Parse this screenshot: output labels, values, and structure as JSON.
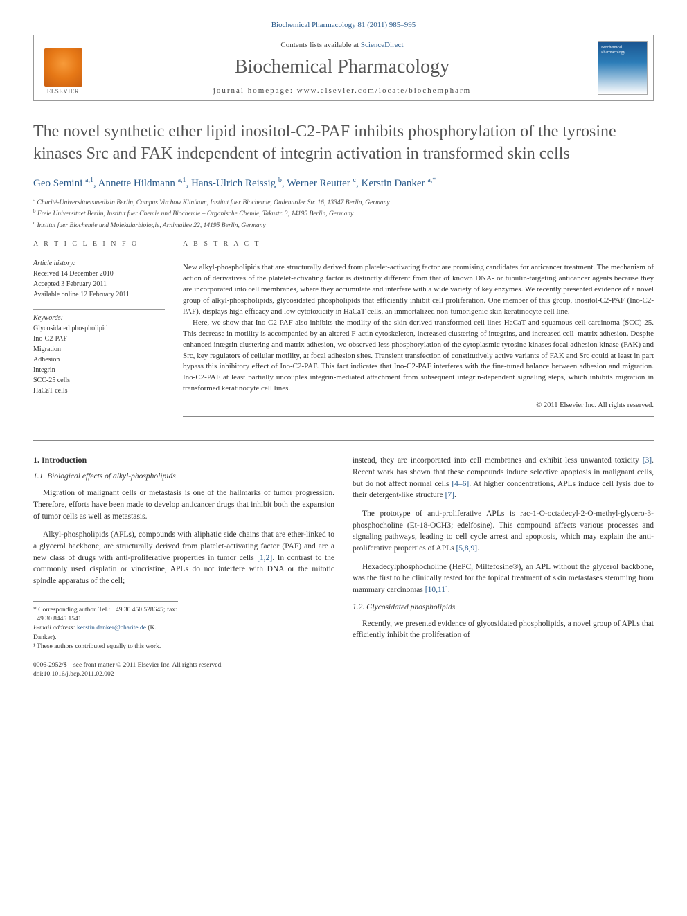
{
  "header": {
    "citation": "Biochemical Pharmacology 81 (2011) 985–995"
  },
  "topbox": {
    "elsevier_label": "ELSEVIER",
    "contents_prefix": "Contents lists available at ",
    "contents_link": "ScienceDirect",
    "journal_name": "Biochemical Pharmacology",
    "homepage_prefix": "journal homepage: ",
    "homepage_url": "www.elsevier.com/locate/biochempharm"
  },
  "title": "The novel synthetic ether lipid inositol-C2-PAF inhibits phosphorylation of the tyrosine kinases Src and FAK independent of integrin activation in transformed skin cells",
  "authors_html": "Geo Semini <sup>a,1</sup>, Annette Hildmann <sup>a,1</sup>, Hans-Ulrich Reissig <sup>b</sup>, Werner Reutter <sup>c</sup>, Kerstin Danker <sup>a,*</sup>",
  "affiliations": [
    {
      "sup": "a",
      "text": "Charité-Universitaetsmedizin Berlin, Campus Virchow Klinikum, Institut fuer Biochemie, Oudenarder Str. 16, 13347 Berlin, Germany"
    },
    {
      "sup": "b",
      "text": "Freie Universitaet Berlin, Institut fuer Chemie und Biochemie – Organische Chemie, Takustr. 3, 14195 Berlin, Germany"
    },
    {
      "sup": "c",
      "text": "Institut fuer Biochemie und Molekularbiologie, Arnimallee 22, 14195 Berlin, Germany"
    }
  ],
  "info": {
    "heading_left": "A R T I C L E   I N F O",
    "heading_right": "A B S T R A C T",
    "history_label": "Article history:",
    "history_lines": [
      "Received 14 December 2010",
      "Accepted 3 February 2011",
      "Available online 12 February 2011"
    ],
    "keywords_label": "Keywords:",
    "keywords": [
      "Glycosidated phospholipid",
      "Ino-C2-PAF",
      "Migration",
      "Adhesion",
      "Integrin",
      "SCC-25 cells",
      "HaCaT cells"
    ]
  },
  "abstract": {
    "p1": "New alkyl-phospholipids that are structurally derived from platelet-activating factor are promising candidates for anticancer treatment. The mechanism of action of derivatives of the platelet-activating factor is distinctly different from that of known DNA- or tubulin-targeting anticancer agents because they are incorporated into cell membranes, where they accumulate and interfere with a wide variety of key enzymes. We recently presented evidence of a novel group of alkyl-phospholipids, glycosidated phospholipids that efficiently inhibit cell proliferation. One member of this group, inositol-C2-PAF (Ino-C2-PAF), displays high efficacy and low cytotoxicity in HaCaT-cells, an immortalized non-tumorigenic skin keratinocyte cell line.",
    "p2": "Here, we show that Ino-C2-PAF also inhibits the motility of the skin-derived transformed cell lines HaCaT and squamous cell carcinoma (SCC)-25. This decrease in motility is accompanied by an altered F-actin cytoskeleton, increased clustering of integrins, and increased cell–matrix adhesion. Despite enhanced integrin clustering and matrix adhesion, we observed less phosphorylation of the cytoplasmic tyrosine kinases focal adhesion kinase (FAK) and Src, key regulators of cellular motility, at focal adhesion sites. Transient transfection of constitutively active variants of FAK and Src could at least in part bypass this inhibitory effect of Ino-C2-PAF. This fact indicates that Ino-C2-PAF interferes with the fine-tuned balance between adhesion and migration. Ino-C2-PAF at least partially uncouples integrin-mediated attachment from subsequent integrin-dependent signaling steps, which inhibits migration in transformed keratinocyte cell lines.",
    "copyright": "© 2011 Elsevier Inc. All rights reserved."
  },
  "body": {
    "section1": "1. Introduction",
    "section11": "1.1. Biological effects of alkyl-phospholipids",
    "p_left_1": "Migration of malignant cells or metastasis is one of the hallmarks of tumor progression. Therefore, efforts have been made to develop anticancer drugs that inhibit both the expansion of tumor cells as well as metastasis.",
    "p_left_2a": "Alkyl-phospholipids (APLs), compounds with aliphatic side chains that are ether-linked to a glycerol backbone, are structurally derived from platelet-activating factor (PAF) and are a new class of drugs with anti-proliferative properties in tumor cells ",
    "cite12": "[1,2]",
    "p_left_2b": ". In contrast to the commonly used cisplatin or vincristine, APLs do not interfere with DNA or the mitotic spindle apparatus of the cell;",
    "p_right_1a": "instead, they are incorporated into cell membranes and exhibit less unwanted toxicity ",
    "cite3": "[3]",
    "p_right_1b": ". Recent work has shown that these compounds induce selective apoptosis in malignant cells, but do not affect normal cells ",
    "cite46": "[4–6]",
    "p_right_1c": ". At higher concentrations, APLs induce cell lysis due to their detergent-like structure ",
    "cite7": "[7]",
    "p_right_1d": ".",
    "p_right_2a": "The prototype of anti-proliferative APLs is rac-1-O-octadecyl-2-O-methyl-glycero-3-phosphocholine (Et-18-OCH3; edelfosine). This compound affects various processes and signaling pathways, leading to cell cycle arrest and apoptosis, which may explain the anti-proliferative properties of APLs ",
    "cite589": "[5,8,9]",
    "p_right_2b": ".",
    "p_right_3a": "Hexadecylphosphocholine (HePC, Miltefosine®), an APL without the glycerol backbone, was the first to be clinically tested for the topical treatment of skin metastases stemming from mammary carcinomas ",
    "cite1011": "[10,11]",
    "p_right_3b": ".",
    "section12": "1.2. Glycosidated phospholipids",
    "p_right_4": "Recently, we presented evidence of glycosidated phospholipids, a novel group of APLs that efficiently inhibit the proliferation of"
  },
  "footnotes": {
    "corr": "* Corresponding author. Tel.: +49 30 450 528645; fax: +49 30 8445 1541.",
    "email_label": "E-mail address:",
    "email": "kerstin.danker@charite.de",
    "email_suffix": "(K. Danker).",
    "contrib": "¹ These authors contributed equally to this work."
  },
  "bottom": {
    "line1": "0006-2952/$ – see front matter © 2011 Elsevier Inc. All rights reserved.",
    "line2": "doi:10.1016/j.bcp.2011.02.002"
  }
}
